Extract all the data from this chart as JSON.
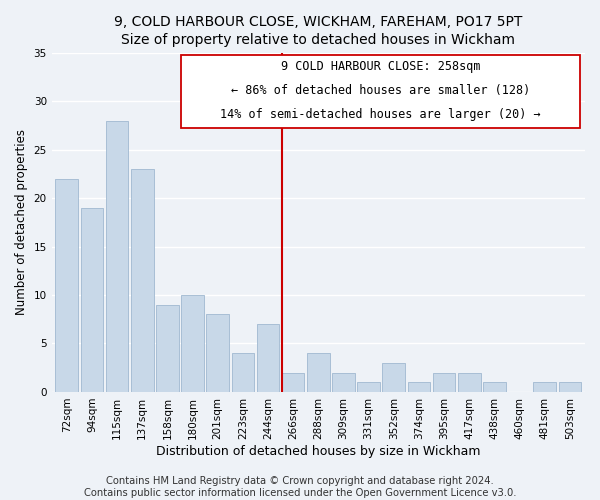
{
  "title": "9, COLD HARBOUR CLOSE, WICKHAM, FAREHAM, PO17 5PT",
  "subtitle": "Size of property relative to detached houses in Wickham",
  "xlabel": "Distribution of detached houses by size in Wickham",
  "ylabel": "Number of detached properties",
  "bar_labels": [
    "72sqm",
    "94sqm",
    "115sqm",
    "137sqm",
    "158sqm",
    "180sqm",
    "201sqm",
    "223sqm",
    "244sqm",
    "266sqm",
    "288sqm",
    "309sqm",
    "331sqm",
    "352sqm",
    "374sqm",
    "395sqm",
    "417sqm",
    "438sqm",
    "460sqm",
    "481sqm",
    "503sqm"
  ],
  "bar_values": [
    22,
    19,
    28,
    23,
    9,
    10,
    8,
    4,
    7,
    2,
    4,
    2,
    1,
    3,
    1,
    2,
    2,
    1,
    0,
    1,
    1
  ],
  "bar_color": "#c8d8e8",
  "bar_edge_color": "#a0b8d0",
  "marker_color": "#cc0000",
  "annotation_title": "9 COLD HARBOUR CLOSE: 258sqm",
  "annotation_line1": "← 86% of detached houses are smaller (128)",
  "annotation_line2": "14% of semi-detached houses are larger (20) →",
  "ylim": [
    0,
    35
  ],
  "yticks": [
    0,
    5,
    10,
    15,
    20,
    25,
    30,
    35
  ],
  "footer_line1": "Contains HM Land Registry data © Crown copyright and database right 2024.",
  "footer_line2": "Contains public sector information licensed under the Open Government Licence v3.0.",
  "background_color": "#eef2f7",
  "grid_color": "#ffffff",
  "marker_bar_index": 9,
  "title_fontsize": 10,
  "tick_fontsize": 7.5,
  "ylabel_fontsize": 8.5,
  "xlabel_fontsize": 9,
  "annotation_fontsize": 8.5,
  "footer_fontsize": 7.2
}
